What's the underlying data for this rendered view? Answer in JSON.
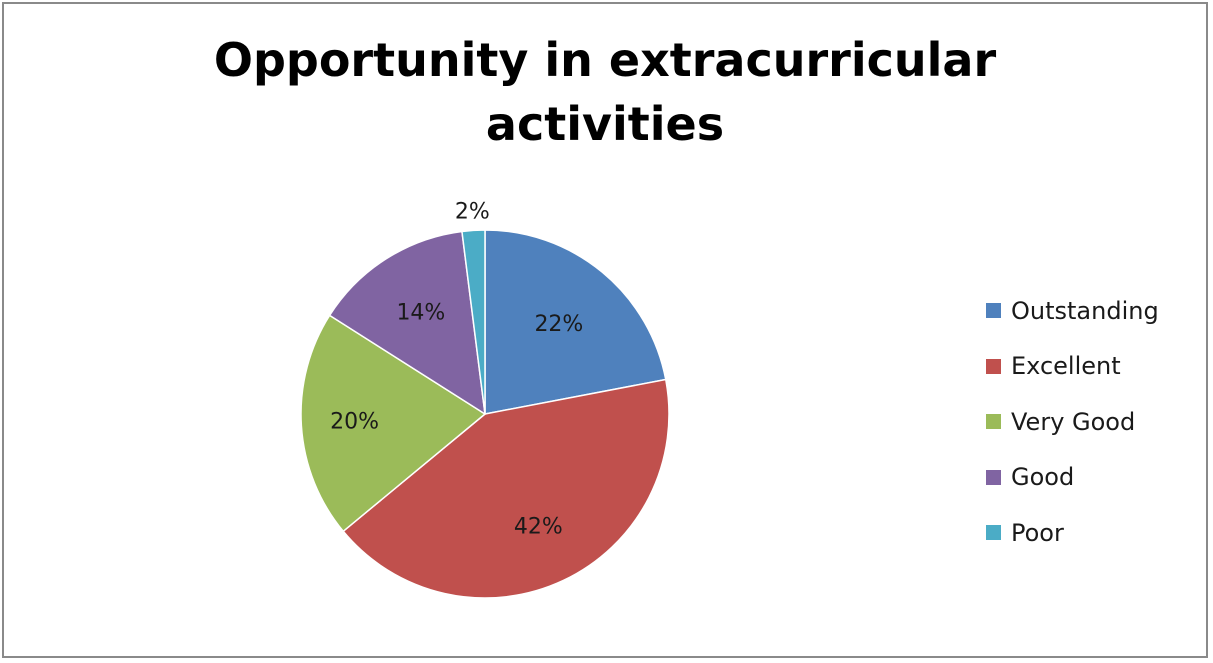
{
  "chart_data": {
    "type": "pie",
    "title": "Opportunity in extracurricular activities",
    "title_lines": [
      "Opportunity in extracurricular",
      "activities"
    ],
    "slices": [
      {
        "label": "Outstanding",
        "value": 22,
        "display": "22%",
        "color": "#4F81BD"
      },
      {
        "label": "Excellent",
        "value": 42,
        "display": "42%",
        "color": "#C0504D"
      },
      {
        "label": "Very Good",
        "value": 20,
        "display": "20%",
        "color": "#9BBB59"
      },
      {
        "label": "Good",
        "value": 14,
        "display": "14%",
        "color": "#8064A2"
      },
      {
        "label": "Poor",
        "value": 2,
        "display": "2%",
        "color": "#4BACC6"
      }
    ],
    "legend_position": "right",
    "start_angle": "12 o'clock",
    "direction": "clockwise"
  }
}
